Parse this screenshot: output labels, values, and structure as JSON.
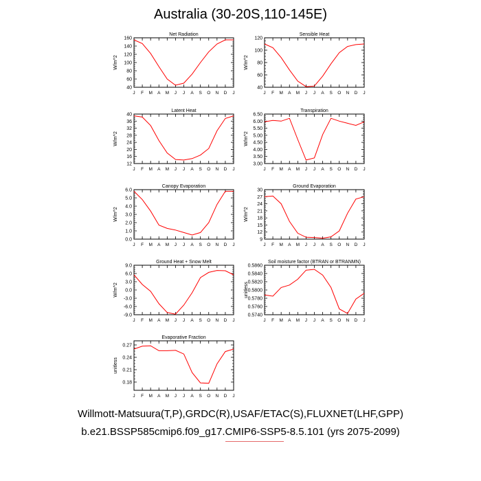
{
  "title": "Australia (30-20S,110-145E)",
  "footer": {
    "line1": "Willmott-Matsuura(T,P),GRDC(R),USAF/ETAC(S),FLUXNET(LHF,GPP)",
    "line2": "b.e21.BSSP585cmip6.f09_g17.CMIP6-SSP5-8.5.101 (yrs 2075-2099)"
  },
  "colors": {
    "series": "#ff0000",
    "axis": "#000000"
  },
  "months": [
    "J",
    "F",
    "M",
    "A",
    "M",
    "J",
    "J",
    "A",
    "S",
    "O",
    "N",
    "D",
    "J"
  ],
  "chart_data": [
    {
      "type": "line",
      "title": "Net Radiation",
      "ylabel": "W/m^2",
      "ylim": [
        40,
        160
      ],
      "yticks": [
        40,
        60,
        80,
        100,
        120,
        140,
        160
      ],
      "ytick_labels": [
        "40",
        "60",
        "80",
        "100",
        "120",
        "140",
        "160"
      ],
      "x": [
        "J",
        "F",
        "M",
        "A",
        "M",
        "J",
        "J",
        "A",
        "S",
        "O",
        "N",
        "D",
        "J"
      ],
      "values": [
        155,
        146,
        122,
        90,
        60,
        45,
        50,
        72,
        100,
        126,
        145,
        155,
        155
      ]
    },
    {
      "type": "line",
      "title": "Sensible Heat",
      "ylabel": "W/m^2",
      "ylim": [
        40,
        120
      ],
      "yticks": [
        40,
        60,
        80,
        100,
        120
      ],
      "ytick_labels": [
        "40",
        "60",
        "80",
        "100",
        "120"
      ],
      "x": [
        "J",
        "F",
        "M",
        "A",
        "M",
        "J",
        "J",
        "A",
        "S",
        "O",
        "N",
        "D",
        "J"
      ],
      "values": [
        110,
        104,
        88,
        68,
        50,
        41,
        42,
        58,
        78,
        96,
        106,
        109,
        110
      ]
    },
    {
      "type": "line",
      "title": "Latent Heat",
      "ylabel": "W/m^2",
      "ylim": [
        12,
        40
      ],
      "yticks": [
        12,
        16,
        20,
        24,
        28,
        32,
        36,
        40
      ],
      "ytick_labels": [
        "12",
        "16",
        "20",
        "24",
        "28",
        "32",
        "36",
        "40"
      ],
      "x": [
        "J",
        "F",
        "M",
        "A",
        "M",
        "J",
        "J",
        "A",
        "S",
        "O",
        "N",
        "D",
        "J"
      ],
      "values": [
        39,
        38.3,
        33.5,
        25,
        18,
        14.3,
        14,
        14.8,
        16.8,
        20.5,
        30.5,
        37.5,
        39
      ]
    },
    {
      "type": "line",
      "title": "Transpiration",
      "ylabel": "W/m^2",
      "ylim": [
        3.0,
        6.5
      ],
      "yticks": [
        3.0,
        3.5,
        4.0,
        4.5,
        5.0,
        5.5,
        6.0,
        6.5
      ],
      "ytick_labels": [
        "3.00",
        "3.50",
        "4.00",
        "4.50",
        "5.00",
        "5.50",
        "6.00",
        "6.50"
      ],
      "x": [
        "J",
        "F",
        "M",
        "A",
        "M",
        "J",
        "J",
        "A",
        "S",
        "O",
        "N",
        "D",
        "J"
      ],
      "values": [
        5.95,
        6.05,
        6.0,
        6.2,
        4.7,
        3.25,
        3.4,
        5.05,
        6.2,
        6.0,
        5.85,
        5.7,
        5.95
      ]
    },
    {
      "type": "line",
      "title": "Canopy Evaporation",
      "ylabel": "W/m^2",
      "ylim": [
        0.0,
        6.0
      ],
      "yticks": [
        0,
        1,
        2,
        3,
        4,
        5,
        6
      ],
      "ytick_labels": [
        "0.0",
        "1.0",
        "2.0",
        "3.0",
        "4.0",
        "5.0",
        "6.0"
      ],
      "x": [
        "J",
        "F",
        "M",
        "A",
        "M",
        "J",
        "J",
        "A",
        "S",
        "O",
        "N",
        "D",
        "J"
      ],
      "values": [
        5.8,
        4.8,
        3.4,
        1.7,
        1.3,
        1.1,
        0.8,
        0.5,
        0.8,
        2.0,
        4.2,
        5.8,
        5.8
      ]
    },
    {
      "type": "line",
      "title": "Ground Evaporation",
      "ylabel": "W/m^2",
      "ylim": [
        9,
        30
      ],
      "yticks": [
        9,
        12,
        15,
        18,
        21,
        24,
        27,
        30
      ],
      "ytick_labels": [
        "9",
        "12",
        "15",
        "18",
        "21",
        "24",
        "27",
        "30"
      ],
      "x": [
        "J",
        "F",
        "M",
        "A",
        "M",
        "J",
        "J",
        "A",
        "S",
        "O",
        "N",
        "D",
        "J"
      ],
      "values": [
        27,
        27.3,
        24,
        16.5,
        11.5,
        9.8,
        9.7,
        9.4,
        10,
        12.5,
        20,
        26,
        27
      ]
    },
    {
      "type": "line",
      "title": "Ground Heat + Snow Melt",
      "ylabel": "W/m^2",
      "ylim": [
        -9.0,
        9.0
      ],
      "yticks": [
        -9,
        -6,
        -3,
        0,
        3,
        6,
        9
      ],
      "ytick_labels": [
        "-9.0",
        "-6.0",
        "-3.0",
        "0.0",
        "3.0",
        "6.0",
        "9.0"
      ],
      "x": [
        "J",
        "F",
        "M",
        "A",
        "M",
        "J",
        "J",
        "A",
        "S",
        "O",
        "N",
        "D",
        "J"
      ],
      "values": [
        5.5,
        2,
        -0.5,
        -5,
        -8.2,
        -8.8,
        -5.5,
        -1,
        4.5,
        6.4,
        7.1,
        7,
        5.5
      ]
    },
    {
      "type": "line",
      "title": "Soil moisture factor (BTRAN or BTRANMN)",
      "ylabel": "unitless",
      "ylim": [
        0.574,
        0.586
      ],
      "yticks": [
        0.574,
        0.576,
        0.578,
        0.58,
        0.582,
        0.584,
        0.586
      ],
      "ytick_labels": [
        "0.5740",
        "0.5760",
        "0.5780",
        "0.5800",
        "0.5820",
        "0.5840",
        "0.5860"
      ],
      "x": [
        "J",
        "F",
        "M",
        "A",
        "M",
        "J",
        "J",
        "A",
        "S",
        "O",
        "N",
        "D",
        "J"
      ],
      "values": [
        0.5788,
        0.5785,
        0.5806,
        0.5812,
        0.5826,
        0.5848,
        0.585,
        0.5836,
        0.5806,
        0.5754,
        0.5743,
        0.5778,
        0.5792
      ]
    },
    {
      "type": "line",
      "title": "Evaporative Fraction",
      "ylabel": "unitless",
      "ylim": [
        0.16,
        0.28
      ],
      "yticks": [
        0.18,
        0.21,
        0.24,
        0.27
      ],
      "ytick_labels": [
        "0.18",
        "0.21",
        "0.24",
        "0.27"
      ],
      "x": [
        "J",
        "F",
        "M",
        "A",
        "M",
        "J",
        "J",
        "A",
        "S",
        "O",
        "N",
        "D",
        "J"
      ],
      "values": [
        0.26,
        0.267,
        0.268,
        0.256,
        0.256,
        0.257,
        0.248,
        0.203,
        0.178,
        0.177,
        0.224,
        0.254,
        0.26
      ]
    }
  ]
}
